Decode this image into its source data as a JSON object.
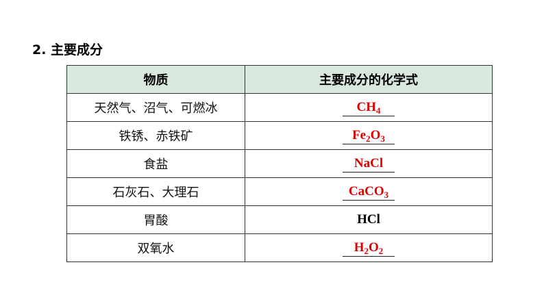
{
  "title": "2. 主要成分",
  "headers": [
    "物质",
    "主要成分的化学式"
  ],
  "rows": [
    {
      "substance": "天然气、沼气、可燃冰",
      "formula": [
        [
          "CH",
          false
        ],
        [
          "4",
          true
        ]
      ],
      "answer": true
    },
    {
      "substance": "铁锈、赤铁矿",
      "formula": [
        [
          "Fe",
          false
        ],
        [
          "2",
          true
        ],
        [
          "O",
          false
        ],
        [
          "3",
          true
        ]
      ],
      "answer": true
    },
    {
      "substance": "食盐",
      "formula": [
        [
          "NaCl",
          false
        ]
      ],
      "answer": true
    },
    {
      "substance": "石灰石、大理石",
      "formula": [
        [
          "CaCO",
          false
        ],
        [
          "3",
          true
        ]
      ],
      "answer": true
    },
    {
      "substance": "胃酸",
      "formula": [
        [
          "HCl",
          false
        ]
      ],
      "answer": false
    },
    {
      "substance": "双氧水",
      "formula": [
        [
          "H",
          false
        ],
        [
          "2",
          true
        ],
        [
          "O",
          false
        ],
        [
          "2",
          true
        ]
      ],
      "answer": true
    }
  ],
  "colors": {
    "answer": "#e00000",
    "header_bg": "#d9e8df"
  }
}
